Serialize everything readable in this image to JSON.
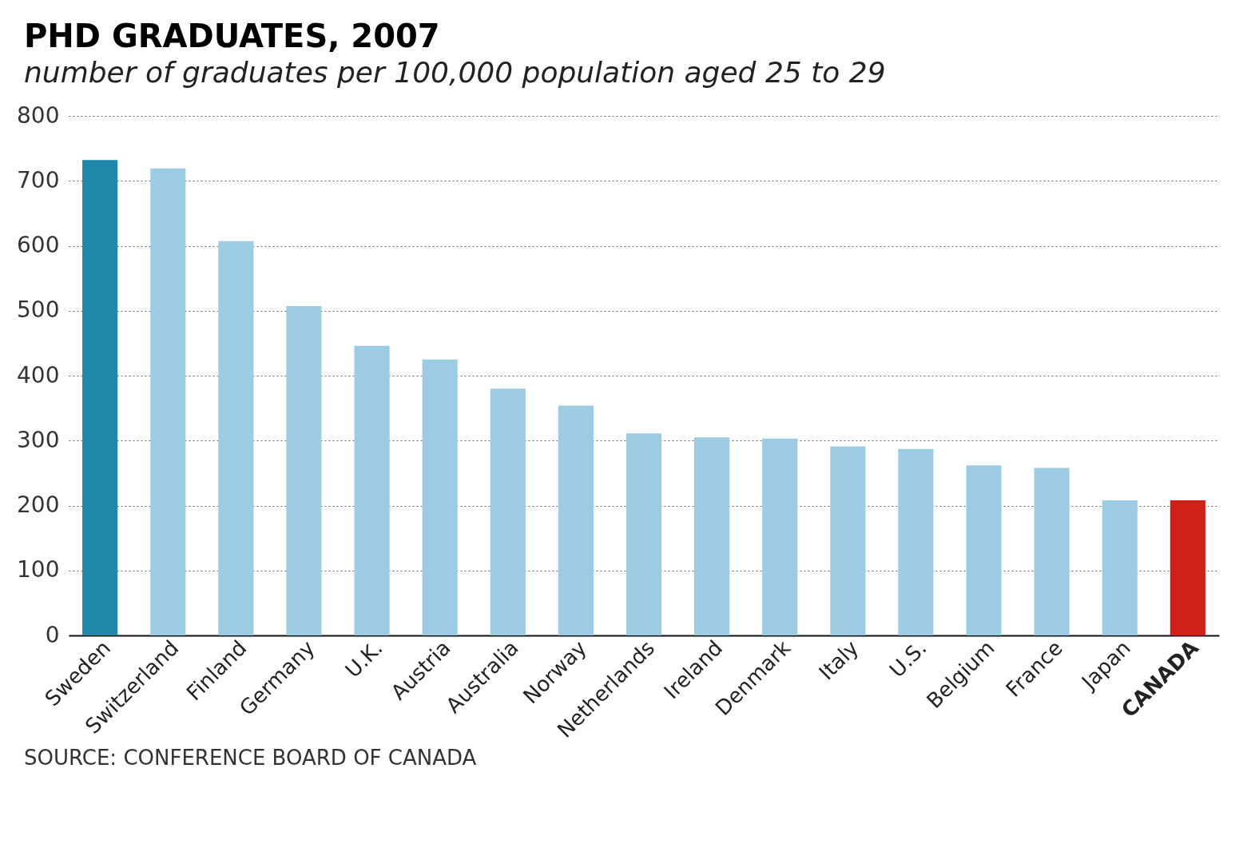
{
  "chart_data": {
    "type": "bar",
    "title": "PHD GRADUATES, 2007",
    "subtitle": "number of graduates per 100,000 population aged 25 to 29",
    "categories": [
      "Sweden",
      "Switzerland",
      "Finland",
      "Germany",
      "U.K.",
      "Austria",
      "Australia",
      "Norway",
      "Netherlands",
      "Ireland",
      "Denmark",
      "Italy",
      "U.S.",
      "Belgium",
      "France",
      "Japan",
      "CANADA"
    ],
    "values": [
      732,
      719,
      607,
      507,
      446,
      425,
      380,
      354,
      311,
      305,
      303,
      291,
      287,
      262,
      258,
      208,
      208
    ],
    "colors": [
      "#1f87a8",
      "#9ccbe4",
      "#9ccbe4",
      "#9ccbe4",
      "#9ccbe4",
      "#9ccbe4",
      "#9ccbe4",
      "#9ccbe4",
      "#9ccbe4",
      "#9ccbe4",
      "#9ccbe4",
      "#9ccbe4",
      "#9ccbe4",
      "#9ccbe4",
      "#9ccbe4",
      "#9ccbe4",
      "#d0201a"
    ],
    "ylim": [
      0,
      800
    ],
    "yticks": [
      0,
      100,
      200,
      300,
      400,
      500,
      600,
      700,
      800
    ],
    "grid": "y",
    "annotations": [
      "SOURCE: CONFERENCE BOARD OF CANADA"
    ]
  }
}
